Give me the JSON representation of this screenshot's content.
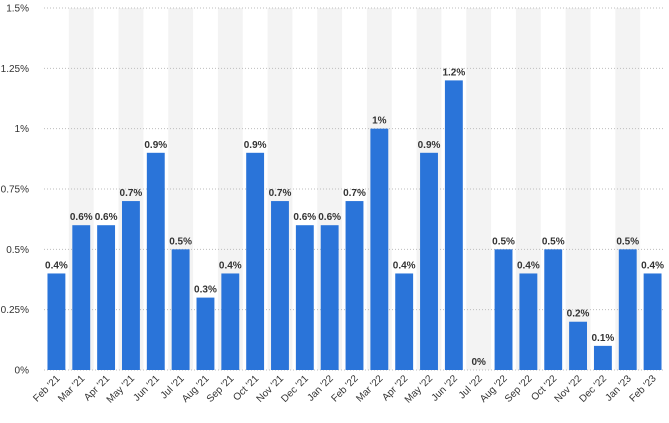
{
  "chart_data": {
    "type": "bar",
    "categories": [
      "Feb '21",
      "Mar '21",
      "Apr '21",
      "May '21",
      "Jun '21",
      "Jul '21",
      "Aug '21",
      "Sep '21",
      "Oct '21",
      "Nov '21",
      "Dec '21",
      "Jan '22",
      "Feb '22",
      "Mar '22",
      "Apr '22",
      "May '22",
      "Jun '22",
      "Jul '22",
      "Aug '22",
      "Sep '22",
      "Oct '22",
      "Nov '22",
      "Dec '22",
      "Jan '23",
      "Feb '23"
    ],
    "values": [
      0.4,
      0.6,
      0.6,
      0.7,
      0.9,
      0.5,
      0.3,
      0.4,
      0.9,
      0.7,
      0.6,
      0.6,
      0.7,
      1.0,
      0.4,
      0.9,
      1.2,
      0.0,
      0.5,
      0.4,
      0.5,
      0.2,
      0.1,
      0.5,
      0.4
    ],
    "data_labels": [
      "0.4%",
      "0.6%",
      "0.6%",
      "0.7%",
      "0.9%",
      "0.5%",
      "0.3%",
      "0.4%",
      "0.9%",
      "0.7%",
      "0.6%",
      "0.6%",
      "0.7%",
      "1%",
      "0.4%",
      "0.9%",
      "1.2%",
      "0%",
      "0.5%",
      "0.4%",
      "0.5%",
      "0.2%",
      "0.1%",
      "0.5%",
      "0.4%"
    ],
    "yticks": [
      0,
      0.25,
      0.5,
      0.75,
      1,
      1.25,
      1.5
    ],
    "ytick_labels": [
      "0%",
      "0.25%",
      "0.5%",
      "0.75%",
      "1%",
      "1.25%",
      "1.5%"
    ],
    "ylim": [
      0,
      1.5
    ],
    "title": "",
    "xlabel": "",
    "ylabel": "",
    "grid": true,
    "legend": "none",
    "bar_color": "#2a74d9",
    "band_color": "#f3f3f3"
  }
}
